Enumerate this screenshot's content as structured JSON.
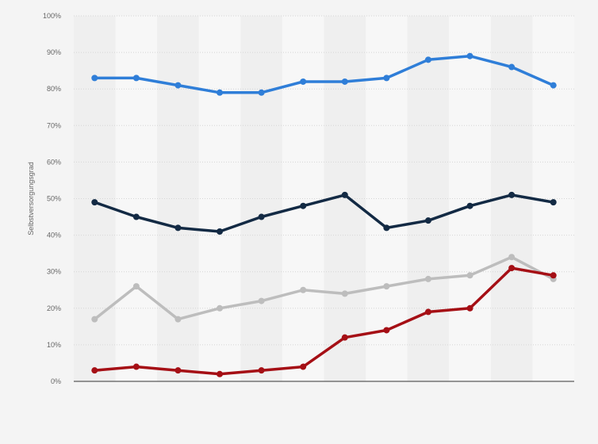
{
  "chart_data": {
    "type": "line",
    "title": "",
    "xlabel": "",
    "ylabel": "Selbstversorgungsgrad",
    "ylim": [
      0,
      100
    ],
    "y_ticks": [
      "0%",
      "10%",
      "20%",
      "30%",
      "40%",
      "50%",
      "60%",
      "70%",
      "80%",
      "90%",
      "100%"
    ],
    "categories": [
      "",
      "",
      "",
      "",
      "",
      "",
      "",
      "",
      "",
      "",
      "",
      ""
    ],
    "grid": true,
    "legend": "none",
    "series": [
      {
        "color": "#2f7ed8",
        "values": [
          83,
          83,
          81,
          79,
          79,
          82,
          82,
          83,
          88,
          89,
          86,
          81
        ]
      },
      {
        "color": "#132a44",
        "values": [
          49,
          45,
          42,
          41,
          45,
          48,
          51,
          42,
          44,
          48,
          51,
          49
        ]
      },
      {
        "color": "#bdbdbd",
        "values": [
          17,
          26,
          17,
          20,
          22,
          25,
          24,
          26,
          28,
          29,
          34,
          28
        ]
      },
      {
        "color": "#a50f15",
        "values": [
          3,
          4,
          3,
          2,
          3,
          4,
          12,
          14,
          19,
          20,
          31,
          29
        ]
      }
    ]
  }
}
